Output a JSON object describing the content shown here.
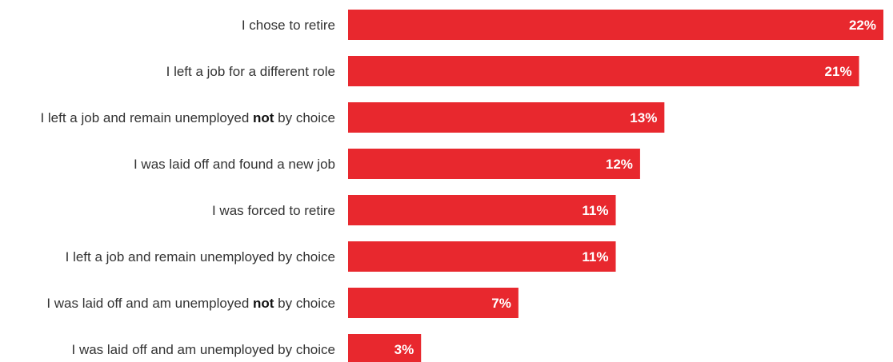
{
  "chart_data": {
    "type": "bar",
    "orientation": "horizontal",
    "bar_color": "#e8282e",
    "value_label_color": "#ffffff",
    "categories": [
      [
        {
          "text": "I chose to retire",
          "bold": false
        }
      ],
      [
        {
          "text": "I left a job for a different role",
          "bold": false
        }
      ],
      [
        {
          "text": "I left a job and remain unemployed ",
          "bold": false
        },
        {
          "text": "not",
          "bold": true
        },
        {
          "text": " by choice",
          "bold": false
        }
      ],
      [
        {
          "text": "I was laid off and found a new job",
          "bold": false
        }
      ],
      [
        {
          "text": "I was forced to retire",
          "bold": false
        }
      ],
      [
        {
          "text": "I left a job and remain unemployed by choice",
          "bold": false
        }
      ],
      [
        {
          "text": "I was laid off and am unemployed ",
          "bold": false
        },
        {
          "text": "not",
          "bold": true
        },
        {
          "text": " by choice",
          "bold": false
        }
      ],
      [
        {
          "text": "I was laid off and am unemployed by choice",
          "bold": false
        }
      ]
    ],
    "values": [
      22,
      21,
      13,
      12,
      11,
      11,
      7,
      3
    ],
    "value_labels": [
      "22%",
      "21%",
      "13%",
      "12%",
      "11%",
      "11%",
      "7%",
      "3%"
    ],
    "xlim": [
      0,
      22
    ],
    "grid": false,
    "legend": "none"
  }
}
